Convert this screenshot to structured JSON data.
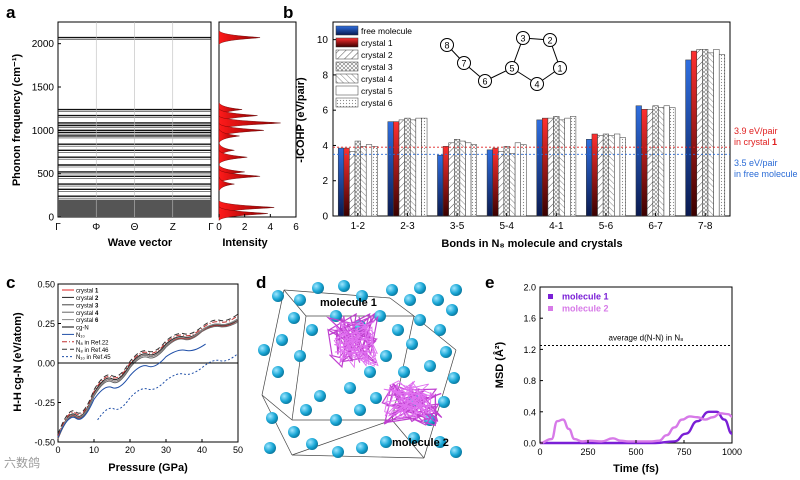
{
  "panels": {
    "a": "a",
    "b": "b",
    "c": "c",
    "d": "d",
    "e": "e"
  },
  "watermark": "六数鸽",
  "panel_a": {
    "ylabel": "Phonon frequency (cm⁻¹)",
    "xlabel": "Wave vector",
    "xticks": [
      "Γ",
      "Φ",
      "Θ",
      "Z",
      "Γ"
    ],
    "yticks": [
      "0",
      "500",
      "1000",
      "1500",
      "2000"
    ],
    "ylim": [
      0,
      2250
    ],
    "dos_xlabel": "Intensity",
    "dos_xticks": [
      "0",
      "2",
      "4",
      "6"
    ],
    "band_levels": [
      2070,
      1240,
      1170,
      1085,
      1055,
      1000,
      975,
      935,
      840,
      770,
      690,
      600,
      520,
      470,
      380,
      320,
      240
    ],
    "dense_band": [
      0,
      200
    ],
    "dos_peaks": [
      {
        "freq": 2070,
        "amp": 3.2
      },
      {
        "freq": 1240,
        "amp": 1.8
      },
      {
        "freq": 1170,
        "amp": 3.0
      },
      {
        "freq": 1085,
        "amp": 4.8
      },
      {
        "freq": 1000,
        "amp": 3.5
      },
      {
        "freq": 935,
        "amp": 1.6
      },
      {
        "freq": 770,
        "amp": 1.2
      },
      {
        "freq": 690,
        "amp": 2.2
      },
      {
        "freq": 520,
        "amp": 2.0
      },
      {
        "freq": 470,
        "amp": 3.2
      },
      {
        "freq": 380,
        "amp": 1.2
      },
      {
        "freq": 110,
        "amp": 4.3
      },
      {
        "freq": 40,
        "amp": 3.8
      }
    ]
  },
  "chart_data": [
    {
      "id": "b",
      "type": "bar",
      "ylabel": "-ICOHP (eV/pair)",
      "xlabel": "Bonds in N₈ molecule and crystals",
      "ylim": [
        0,
        11
      ],
      "yticks": [
        "0",
        "2",
        "4",
        "6",
        "8",
        "10"
      ],
      "categories": [
        "1-2",
        "2-3",
        "3-5",
        "5-4",
        "4-1",
        "5-6",
        "6-7",
        "7-8"
      ],
      "series": [
        {
          "name": "free molecule",
          "fill": "blue",
          "values": [
            3.85,
            5.35,
            3.45,
            3.75,
            5.45,
            4.35,
            6.25,
            8.85
          ]
        },
        {
          "name": "crystal 1",
          "fill": "red",
          "values": [
            3.85,
            5.35,
            3.95,
            3.85,
            5.55,
            4.65,
            6.05,
            9.35
          ]
        },
        {
          "name": "crystal 2",
          "fill": "hatch1",
          "values": [
            3.65,
            5.45,
            4.15,
            3.65,
            5.55,
            4.55,
            6.05,
            9.45
          ]
        },
        {
          "name": "crystal 3",
          "fill": "cross",
          "values": [
            4.25,
            5.55,
            4.35,
            3.95,
            5.65,
            4.65,
            6.25,
            9.45
          ]
        },
        {
          "name": "crystal 4",
          "fill": "hatch2",
          "values": [
            3.95,
            5.45,
            4.25,
            3.55,
            5.45,
            4.55,
            6.15,
            9.25
          ]
        },
        {
          "name": "crystal 5",
          "fill": "white",
          "values": [
            4.05,
            5.55,
            4.15,
            4.15,
            5.55,
            4.65,
            6.25,
            9.45
          ]
        },
        {
          "name": "crystal 6",
          "fill": "dots",
          "values": [
            3.95,
            5.55,
            4.05,
            4.05,
            5.65,
            4.45,
            6.15,
            9.15
          ]
        }
      ],
      "ref_lines": [
        {
          "value": 3.9,
          "color": "#e02020",
          "text1": "3.9 eV/pair",
          "text2": "in crystal ",
          "bold": "1"
        },
        {
          "value": 3.5,
          "color": "#2a6bd6",
          "text1": "3.5 eV/pair",
          "text2": "in free molecule",
          "bold": ""
        }
      ],
      "molecule_atoms": [
        "1",
        "2",
        "3",
        "4",
        "5",
        "6",
        "7",
        "8"
      ]
    },
    {
      "id": "c",
      "type": "line",
      "ylabel": "H-H cg-N (eV/atom)",
      "xlabel": "Pressure (GPa)",
      "xlim": [
        0,
        50
      ],
      "ylim": [
        -0.5,
        0.5
      ],
      "xticks": [
        "0",
        "10",
        "20",
        "30",
        "40",
        "50"
      ],
      "yticks": [
        "-0.50",
        "-0.25",
        "0.00",
        "0.25",
        "0.50"
      ],
      "series": [
        {
          "name": "crystal 1",
          "bold": "1",
          "color": "#e02020",
          "dash": "",
          "x": [
            0,
            10,
            20,
            30,
            40,
            50
          ],
          "y": [
            -0.48,
            -0.2,
            -0.02,
            0.11,
            0.2,
            0.27
          ]
        },
        {
          "name": "crystal 2",
          "bold": "2",
          "color": "#222222",
          "dash": "",
          "x": [
            0,
            10,
            20,
            30,
            40,
            50
          ],
          "y": [
            -0.47,
            -0.19,
            -0.01,
            0.12,
            0.21,
            0.28
          ]
        },
        {
          "name": "crystal 3",
          "bold": "3",
          "color": "#444444",
          "dash": "",
          "x": [
            0,
            10,
            20,
            30,
            40,
            50
          ],
          "y": [
            -0.47,
            -0.2,
            -0.02,
            0.11,
            0.21,
            0.27
          ]
        },
        {
          "name": "crystal 4",
          "bold": "4",
          "color": "#666666",
          "dash": "",
          "x": [
            0,
            10,
            20,
            30,
            40,
            50
          ],
          "y": [
            -0.48,
            -0.21,
            -0.03,
            0.1,
            0.2,
            0.26
          ]
        },
        {
          "name": "crystal 6",
          "bold": "6",
          "color": "#888888",
          "dash": "",
          "x": [
            0,
            10,
            20,
            30,
            40,
            50
          ],
          "y": [
            -0.47,
            -0.2,
            -0.02,
            0.11,
            0.21,
            0.28
          ]
        },
        {
          "name": "cg-N",
          "bold": "",
          "color": "#000000",
          "dash": "",
          "x": [
            0,
            50
          ],
          "y": [
            0,
            0
          ]
        },
        {
          "name": "N₁₀",
          "bold": "",
          "color": "#1f4fa8",
          "dash": "",
          "x": [
            0,
            10,
            20,
            30,
            41
          ],
          "y": [
            -0.47,
            -0.23,
            -0.08,
            0.04,
            0.12
          ]
        },
        {
          "name": "N₈ in Ref.22",
          "bold": "",
          "color": "#c03030",
          "dash": "5,2,1,2",
          "x": [
            0,
            10,
            20,
            30,
            40,
            50
          ],
          "y": [
            -0.46,
            -0.18,
            0,
            0.13,
            0.22,
            0.3
          ]
        },
        {
          "name": "N₈ in Ref.46",
          "bold": "",
          "color": "#333333",
          "dash": "5,3",
          "x": [
            0,
            10,
            20,
            30,
            40,
            50
          ],
          "y": [
            -0.45,
            -0.17,
            0.01,
            0.14,
            0.23,
            0.31
          ]
        },
        {
          "name": "N₁₀ in Ref.45",
          "bold": "",
          "color": "#1f4fa8",
          "dash": "2,2",
          "x": [
            11,
            20,
            30,
            40,
            50
          ],
          "y": [
            -0.36,
            -0.22,
            -0.11,
            -0.03,
            0.06
          ]
        }
      ]
    },
    {
      "id": "e",
      "type": "line",
      "ylabel": "MSD (Å²)",
      "xlabel": "Time (fs)",
      "xlim": [
        0,
        1000
      ],
      "ylim": [
        0,
        2.0
      ],
      "xticks": [
        "0",
        "250",
        "500",
        "750",
        "1000"
      ],
      "yticks": [
        "0.0",
        "0.4",
        "0.8",
        "1.2",
        "1.6",
        "2.0"
      ],
      "series": [
        {
          "name": "molecule 1",
          "color": "#7a1fd6",
          "x": [
            0,
            600,
            700,
            760,
            820,
            880,
            920,
            960,
            1000
          ],
          "y": [
            0,
            0,
            0.02,
            0.12,
            0.28,
            0.4,
            0.4,
            0.3,
            0.12
          ]
        },
        {
          "name": "molecule 2",
          "color": "#d77ae8",
          "x": [
            0,
            60,
            90,
            120,
            150,
            180,
            220,
            260,
            320,
            380,
            420,
            460,
            520,
            580,
            620,
            660,
            700,
            740,
            780,
            820,
            860,
            900,
            940,
            980,
            1000
          ],
          "y": [
            0,
            0.05,
            0.28,
            0.3,
            0.18,
            0.05,
            0.02,
            0.03,
            0.02,
            0.06,
            0.03,
            0.02,
            0.02,
            0.02,
            0.03,
            0.1,
            0.2,
            0.3,
            0.34,
            0.33,
            0.3,
            0.33,
            0.38,
            0.37,
            0.34
          ]
        }
      ],
      "ref_line": {
        "value": 1.25,
        "label": "average d(N-N) in N₈"
      }
    }
  ],
  "panel_d": {
    "molecule1": "molecule 1",
    "molecule2": "molecule 2"
  }
}
